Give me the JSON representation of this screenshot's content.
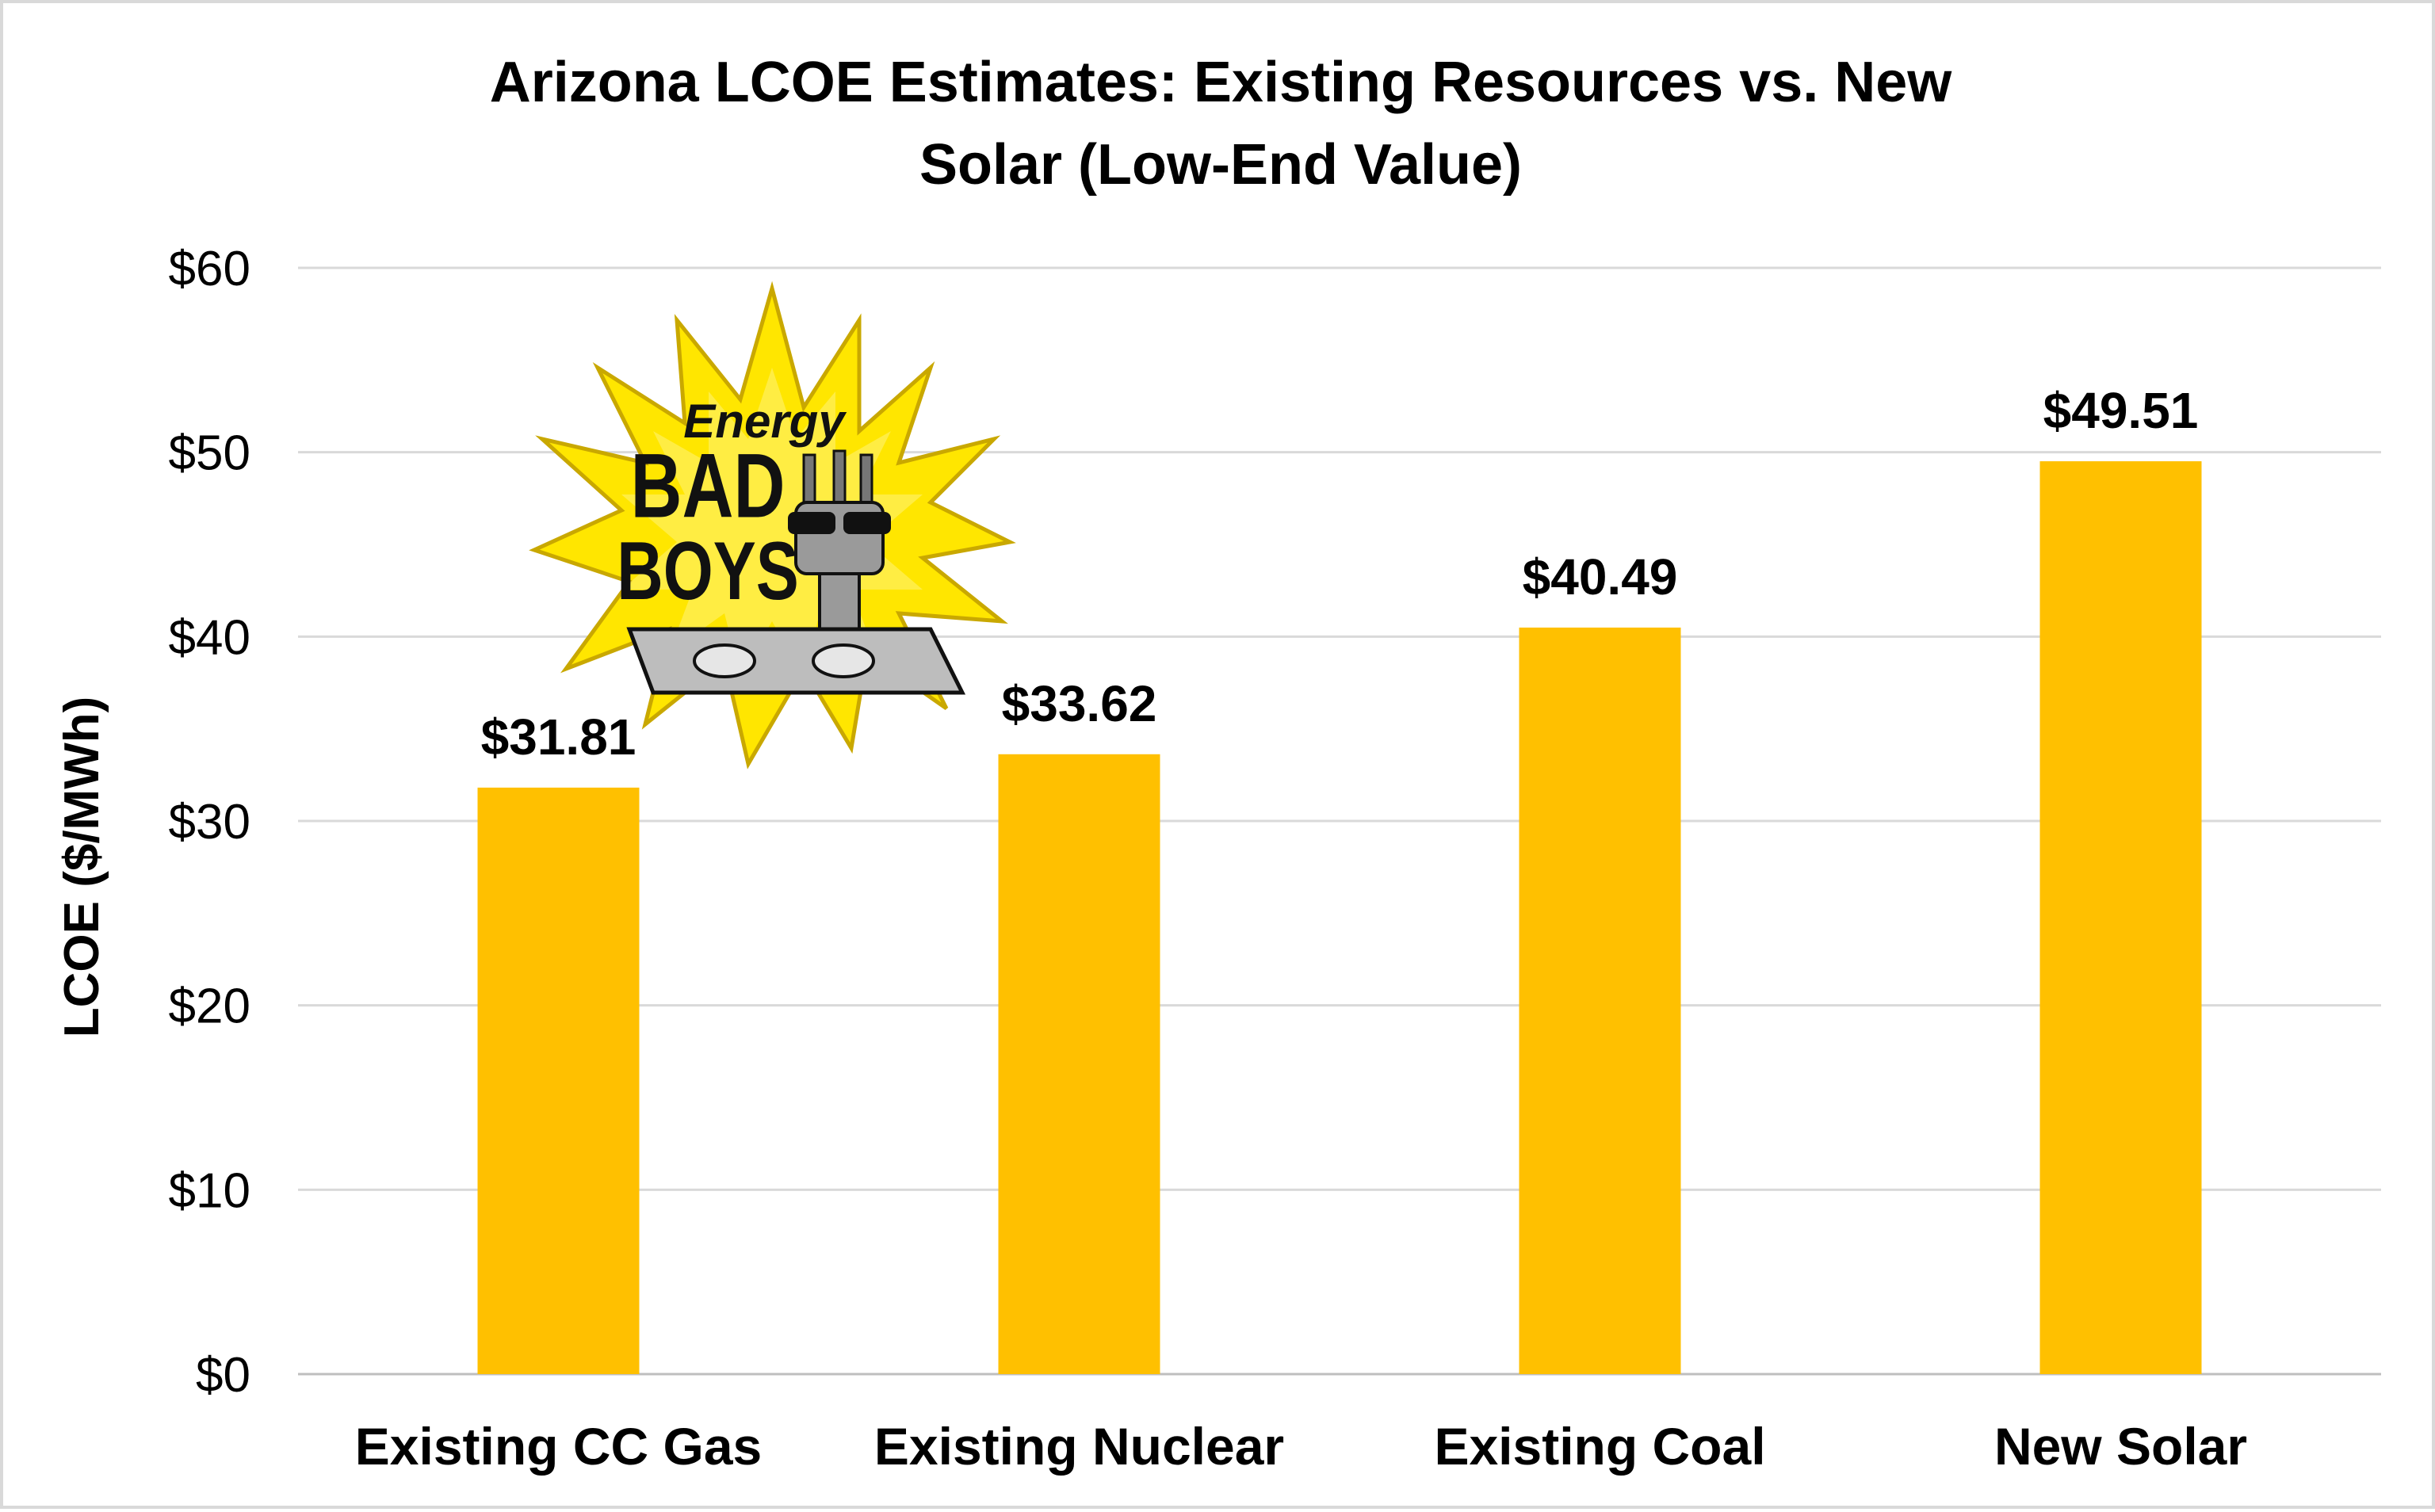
{
  "chart_data": {
    "type": "bar",
    "title_lines": [
      "Arizona LCOE Estimates: Existing Resources vs. New",
      "Solar (Low-End Value)"
    ],
    "categories": [
      "Existing CC Gas",
      "Existing Nuclear",
      "Existing Coal",
      "New Solar"
    ],
    "values": [
      31.81,
      33.62,
      40.49,
      49.51
    ],
    "data_labels": [
      "$31.81",
      "$33.62",
      "$40.49",
      "$49.51"
    ],
    "ylabel": "LCOE ($/MWh)",
    "xlabel": "",
    "ylim": [
      0,
      60
    ],
    "yticks": [
      0,
      10,
      20,
      30,
      40,
      50,
      60
    ],
    "ytick_labels": [
      "$0",
      "$10",
      "$20",
      "$30",
      "$40",
      "$50",
      "$60"
    ],
    "grid": true,
    "legend": "none",
    "bar_color": "#FFC000",
    "grid_color": "#D9D9D9"
  },
  "logo": {
    "words": [
      "Energy",
      "BAD",
      "BOYS"
    ],
    "burst_color": "#FFE600",
    "burst_outline": "#C9A800"
  }
}
